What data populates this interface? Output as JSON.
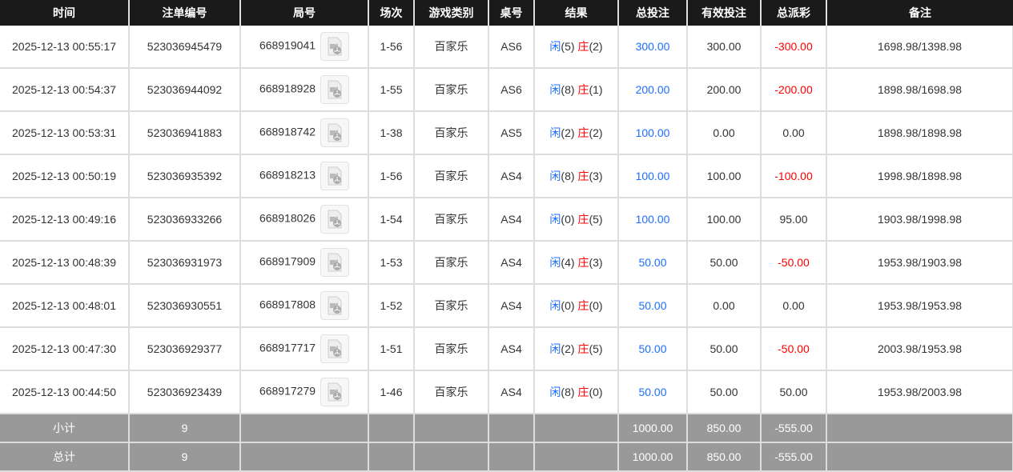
{
  "headers": [
    "时间",
    "注单编号",
    "局号",
    "场次",
    "游戏类别",
    "桌号",
    "结果",
    "总投注",
    "有效投注",
    "总派彩",
    "备注"
  ],
  "colors": {
    "player": "#1e6fff",
    "banker": "#ff0000",
    "bet": "#1e6fff",
    "negative": "#ff0000"
  },
  "player_label": "闲",
  "banker_label": "庄",
  "rows": [
    {
      "time": "2025-12-13 00:55:17",
      "bet_id": "523036945479",
      "round": "668919041",
      "shoe": "1-56",
      "game": "百家乐",
      "table": "AS6",
      "p": "(5)",
      "b": "(2)",
      "total": "300.00",
      "valid": "300.00",
      "payout": "-300.00",
      "note": "1698.98/1398.98"
    },
    {
      "time": "2025-12-13 00:54:37",
      "bet_id": "523036944092",
      "round": "668918928",
      "shoe": "1-55",
      "game": "百家乐",
      "table": "AS6",
      "p": "(8)",
      "b": "(1)",
      "total": "200.00",
      "valid": "200.00",
      "payout": "-200.00",
      "note": "1898.98/1698.98"
    },
    {
      "time": "2025-12-13 00:53:31",
      "bet_id": "523036941883",
      "round": "668918742",
      "shoe": "1-38",
      "game": "百家乐",
      "table": "AS5",
      "p": "(2)",
      "b": "(2)",
      "total": "100.00",
      "valid": "0.00",
      "payout": "0.00",
      "note": "1898.98/1898.98"
    },
    {
      "time": "2025-12-13 00:50:19",
      "bet_id": "523036935392",
      "round": "668918213",
      "shoe": "1-56",
      "game": "百家乐",
      "table": "AS4",
      "p": "(8)",
      "b": "(3)",
      "total": "100.00",
      "valid": "100.00",
      "payout": "-100.00",
      "note": "1998.98/1898.98"
    },
    {
      "time": "2025-12-13 00:49:16",
      "bet_id": "523036933266",
      "round": "668918026",
      "shoe": "1-54",
      "game": "百家乐",
      "table": "AS4",
      "p": "(0)",
      "b": "(5)",
      "total": "100.00",
      "valid": "100.00",
      "payout": "95.00",
      "note": "1903.98/1998.98"
    },
    {
      "time": "2025-12-13 00:48:39",
      "bet_id": "523036931973",
      "round": "668917909",
      "shoe": "1-53",
      "game": "百家乐",
      "table": "AS4",
      "p": "(4)",
      "b": "(3)",
      "total": "50.00",
      "valid": "50.00",
      "payout": "-50.00",
      "note": "1953.98/1903.98"
    },
    {
      "time": "2025-12-13 00:48:01",
      "bet_id": "523036930551",
      "round": "668917808",
      "shoe": "1-52",
      "game": "百家乐",
      "table": "AS4",
      "p": "(0)",
      "b": "(0)",
      "total": "50.00",
      "valid": "0.00",
      "payout": "0.00",
      "note": "1953.98/1953.98"
    },
    {
      "time": "2025-12-13 00:47:30",
      "bet_id": "523036929377",
      "round": "668917717",
      "shoe": "1-51",
      "game": "百家乐",
      "table": "AS4",
      "p": "(2)",
      "b": "(5)",
      "total": "50.00",
      "valid": "50.00",
      "payout": "-50.00",
      "note": "2003.98/1953.98"
    },
    {
      "time": "2025-12-13 00:44:50",
      "bet_id": "523036923439",
      "round": "668917279",
      "shoe": "1-46",
      "game": "百家乐",
      "table": "AS4",
      "p": "(8)",
      "b": "(0)",
      "total": "50.00",
      "valid": "50.00",
      "payout": "50.00",
      "note": "1953.98/2003.98"
    }
  ],
  "summary": [
    {
      "label": "小计",
      "count": "9",
      "total": "1000.00",
      "valid": "850.00",
      "payout": "-555.00"
    },
    {
      "label": "总计",
      "count": "9",
      "total": "1000.00",
      "valid": "850.00",
      "payout": "-555.00"
    }
  ]
}
